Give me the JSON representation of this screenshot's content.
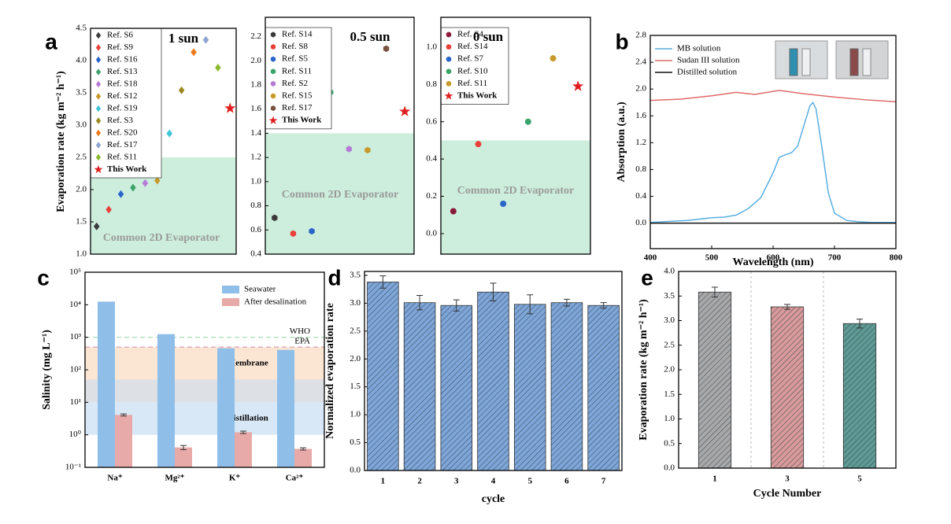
{
  "chart_data": [
    {
      "type": "scatter",
      "panel": "a",
      "title": "1 sun",
      "y_label": "Evaporation rate (kg m⁻² h⁻¹)",
      "ylim": [
        1.0,
        4.5
      ],
      "yticks": [
        {
          "value": 1,
          "label": "1.0"
        },
        1.5,
        {
          "value": 2,
          "label": "2.0"
        },
        2.5,
        {
          "value": 3,
          "label": "3.0"
        },
        3.5,
        {
          "value": 4,
          "label": "4.0"
        },
        4.5
      ],
      "threshold": 2.5,
      "threshold_label": "Common 2D Evaporator",
      "threshold_color": "#cdeedd",
      "legend": "upper left",
      "series": [
        {
          "name": "Ref. S6",
          "color": "#3a3a3a",
          "marker": "diamond",
          "values": [
            1.43
          ]
        },
        {
          "name": "Ref. S9",
          "color": "#e8413a",
          "marker": "diamond",
          "values": [
            1.69
          ]
        },
        {
          "name": "Ref. S16",
          "color": "#2a66c9",
          "marker": "diamond",
          "values": [
            1.93
          ]
        },
        {
          "name": "Ref. S13",
          "color": "#3aa36a",
          "marker": "diamond",
          "values": [
            2.03
          ]
        },
        {
          "name": "Ref. S18",
          "color": "#b57bd6",
          "marker": "diamond",
          "values": [
            2.1
          ]
        },
        {
          "name": "Ref. S12",
          "color": "#c89a2c",
          "marker": "diamond",
          "values": [
            2.14
          ]
        },
        {
          "name": "Ref. S19",
          "color": "#3fc4d6",
          "marker": "diamond",
          "values": [
            2.87
          ]
        },
        {
          "name": "Ref. S3",
          "color": "#9a8a20",
          "marker": "diamond",
          "values": [
            3.54
          ]
        },
        {
          "name": "Ref. S20",
          "color": "#ef7a1c",
          "marker": "diamond",
          "values": [
            4.13
          ]
        },
        {
          "name": "Ref. S17",
          "color": "#8fa3cf",
          "marker": "diamond",
          "values": [
            4.32
          ]
        },
        {
          "name": "Ref. S11",
          "color": "#8bb92d",
          "marker": "diamond",
          "values": [
            3.89
          ]
        },
        {
          "name": "This Work",
          "color": "#e02020",
          "marker": "star",
          "values": [
            3.26
          ]
        }
      ]
    },
    {
      "type": "scatter",
      "title": "0.5 sun",
      "ylim": [
        0.4,
        2.36
      ],
      "yticks": [
        0.4,
        0.6,
        0.8,
        {
          "value": 1,
          "label": "1.0"
        },
        1.2,
        1.4,
        1.6,
        1.8,
        {
          "value": 2,
          "label": "2.0"
        },
        2.2
      ],
      "threshold": 1.4,
      "threshold_label": "Common 2D Evaporator",
      "threshold_color": "#cdeedd",
      "legend": "upper left",
      "series": [
        {
          "name": "Ref. S14",
          "color": "#3a3a3a",
          "marker": "hexagon",
          "values": [
            0.7
          ]
        },
        {
          "name": "Ref. S8",
          "color": "#e8413a",
          "marker": "hexagon",
          "values": [
            0.57
          ]
        },
        {
          "name": "Ref. S5",
          "color": "#2a66c9",
          "marker": "hexagon",
          "values": [
            0.59
          ]
        },
        {
          "name": "Ref. S11",
          "color": "#3aa36a",
          "marker": "hexagon",
          "values": [
            1.74
          ]
        },
        {
          "name": "Ref. S2",
          "color": "#b57bd6",
          "marker": "hexagon",
          "values": [
            1.27
          ]
        },
        {
          "name": "Ref. S15",
          "color": "#c89a2c",
          "marker": "hexagon",
          "values": [
            1.26
          ]
        },
        {
          "name": "Ref. S17",
          "color": "#7a5040",
          "marker": "hexagon",
          "values": [
            2.1
          ]
        },
        {
          "name": "This Work",
          "color": "#e02020",
          "marker": "star",
          "values": [
            1.58
          ]
        }
      ]
    },
    {
      "type": "scatter",
      "title": "0 sun",
      "ylim": [
        -0.11,
        1.16
      ],
      "yticks": [
        {
          "value": 0,
          "label": "0.0"
        },
        0.2,
        0.4,
        0.6,
        0.8,
        {
          "value": 1,
          "label": "1.0"
        }
      ],
      "threshold": 0.5,
      "threshold_label": "Common 2D Evaporator",
      "threshold_color": "#cdeedd",
      "legend": "upper left",
      "series": [
        {
          "name": "Ref. S4",
          "color": "#8a1a3a",
          "marker": "circle",
          "values": [
            0.12
          ]
        },
        {
          "name": "Ref. S14",
          "color": "#e8413a",
          "marker": "circle",
          "values": [
            0.48
          ]
        },
        {
          "name": "Ref. S7",
          "color": "#2a66c9",
          "marker": "circle",
          "values": [
            0.16
          ]
        },
        {
          "name": "Ref. S10",
          "color": "#3aa36a",
          "marker": "circle",
          "values": [
            0.6
          ]
        },
        {
          "name": "Ref. S11",
          "color": "#c89a2c",
          "marker": "circle",
          "values": [
            0.94
          ]
        },
        {
          "name": "This Work",
          "color": "#e02020",
          "marker": "star",
          "values": [
            0.79
          ]
        }
      ]
    },
    {
      "type": "line",
      "panel": "b",
      "x_label": "Wavelength (nm)",
      "y_label": "Absorption (a.u.)",
      "xlim": [
        400,
        800
      ],
      "xticks": [
        400,
        500,
        600,
        700,
        800
      ],
      "ylim": [
        -0.38,
        2.8
      ],
      "yticks": [
        {
          "value": 0,
          "label": "0.0"
        },
        0.4,
        0.8,
        1.2,
        1.6,
        {
          "value": 2,
          "label": "2.0"
        },
        2.4,
        2.8
      ],
      "legend": "upper left",
      "series": [
        {
          "name": "MB solution",
          "color": "#5aaee0",
          "x": [
            400,
            420,
            440,
            460,
            480,
            500,
            520,
            540,
            560,
            580,
            600,
            610,
            620,
            630,
            640,
            650,
            660,
            665,
            670,
            680,
            690,
            700,
            720,
            740,
            760,
            780,
            800
          ],
          "values": [
            0.01,
            0.02,
            0.03,
            0.04,
            0.06,
            0.08,
            0.09,
            0.12,
            0.22,
            0.38,
            0.75,
            0.98,
            1.02,
            1.05,
            1.15,
            1.45,
            1.75,
            1.8,
            1.7,
            1.1,
            0.45,
            0.15,
            0.04,
            0.02,
            0.01,
            0.01,
            0.01
          ]
        },
        {
          "name": "Sudan III solution",
          "color": "#e06a6a",
          "x": [
            400,
            450,
            500,
            540,
            570,
            610,
            650,
            700,
            750,
            800
          ],
          "values": [
            1.83,
            1.85,
            1.9,
            1.95,
            1.92,
            1.98,
            1.93,
            1.88,
            1.84,
            1.81
          ]
        },
        {
          "name": "Distilled solution",
          "color": "#111111",
          "x": [
            400,
            800
          ],
          "values": [
            0.0,
            0.0
          ]
        }
      ]
    },
    {
      "type": "bar",
      "panel": "c",
      "log": true,
      "y_label": "Salinity (mg L⁻¹)",
      "categories": [
        "Na⁺",
        "Mg²⁺",
        "K⁺",
        "Ca²⁺"
      ],
      "ylim": [
        0.1,
        100000
      ],
      "yticks": [
        {
          "value": 0.1,
          "label": "10⁻¹"
        },
        {
          "value": 1,
          "label": "10⁰"
        },
        {
          "value": 10,
          "label": "10¹"
        },
        {
          "value": 100,
          "label": "10²"
        },
        {
          "value": 1000,
          "label": "10³"
        },
        {
          "value": 10000,
          "label": "10⁴"
        },
        {
          "value": 100000,
          "label": "10⁵"
        }
      ],
      "bands": [
        {
          "label": "Membrane",
          "range": [
            50,
            500
          ],
          "color": "#fbe6d4",
          "label_color": "#d4a020"
        },
        {
          "range": [
            10,
            50
          ],
          "color": "#dde1e6"
        },
        {
          "label": "Distillation",
          "range": [
            1,
            10
          ],
          "color": "#d8e8f6",
          "label_color": "#3f7fd0"
        }
      ],
      "reference_lines": [
        {
          "label": "WHO",
          "value": 1000,
          "color": "#9fd8b0"
        },
        {
          "label": "EPA",
          "value": 500,
          "color": "#d9a0b0"
        }
      ],
      "legend": "upper right",
      "series": [
        {
          "name": "Seawater",
          "color": "#8fbfe8",
          "values": [
            12500,
            1250,
            460,
            410
          ]
        },
        {
          "name": "After desalination",
          "color": "#e8aaa8",
          "values": [
            4.1,
            0.41,
            1.2,
            0.37
          ],
          "errors": [
            0.3,
            0.06,
            0.1,
            0.03
          ]
        }
      ]
    },
    {
      "type": "bar",
      "panel": "d",
      "hatch": true,
      "x_label": "cycle",
      "y_label": "Normalized evaporation rate",
      "categories": [
        "1",
        "2",
        "3",
        "4",
        "5",
        "6",
        "7"
      ],
      "ylim": [
        0,
        3.57
      ],
      "yticks": [
        {
          "value": 0,
          "label": "0.0"
        },
        0.5,
        {
          "value": 1,
          "label": "1.0"
        },
        1.5,
        {
          "value": 2,
          "label": "2.0"
        },
        2.5,
        {
          "value": 3,
          "label": "3.0"
        },
        3.5
      ],
      "series": [
        {
          "color": "#7ea6d8",
          "values": [
            3.38,
            3.01,
            2.96,
            3.2,
            2.98,
            3.01,
            2.96
          ],
          "errors": [
            0.11,
            0.13,
            0.1,
            0.16,
            0.17,
            0.06,
            0.05
          ]
        }
      ]
    },
    {
      "type": "bar",
      "panel": "e",
      "hatch": true,
      "separators": true,
      "x_label": "Cycle Number",
      "y_label": "Evaporation rate (kg m⁻² h⁻¹)",
      "categories": [
        "1",
        "3",
        "5"
      ],
      "ylim": [
        0,
        4.0
      ],
      "yticks": [
        {
          "value": 0,
          "label": "0.0"
        },
        0.5,
        {
          "value": 1,
          "label": "1.0"
        },
        1.5,
        {
          "value": 2,
          "label": "2.0"
        },
        2.5,
        {
          "value": 3,
          "label": "3.0"
        },
        3.5,
        {
          "value": 4,
          "label": "4.0"
        }
      ],
      "series": [
        {
          "colors": [
            "#a8a8a8",
            "#d89a9a",
            "#5f9a94"
          ],
          "values": [
            3.58,
            3.28,
            2.94
          ],
          "errors": [
            0.1,
            0.05,
            0.09
          ]
        }
      ]
    }
  ]
}
